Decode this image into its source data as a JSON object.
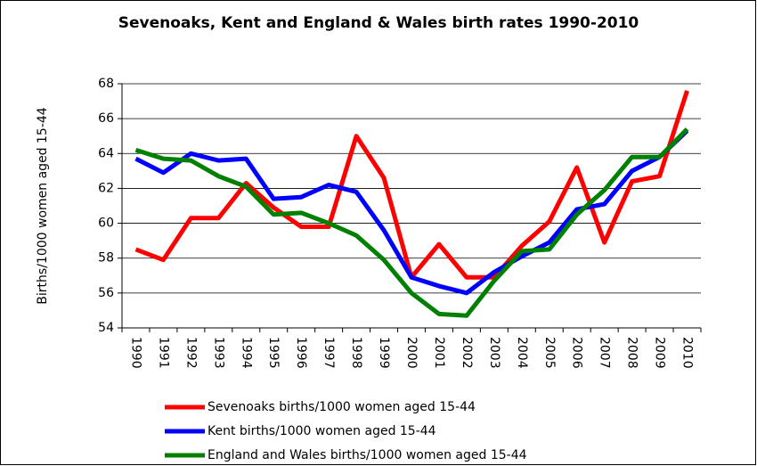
{
  "chart_data": {
    "type": "line",
    "title": "Sevenoaks, Kent and England & Wales birth rates 1990-2010",
    "y_label": "Births/1000 women aged 15-44",
    "categories": [
      "1990",
      "1991",
      "1992",
      "1993",
      "1994",
      "1995",
      "1996",
      "1997",
      "1998",
      "1999",
      "2000",
      "2001",
      "2002",
      "2003",
      "2004",
      "2005",
      "2006",
      "2007",
      "2008",
      "2009",
      "2010"
    ],
    "series": [
      {
        "name": "Sevenoaks births/1000 women aged 15-44",
        "color": "#ff0000",
        "values": [
          58.5,
          57.9,
          60.3,
          60.3,
          62.3,
          60.9,
          59.8,
          59.8,
          65.0,
          62.6,
          56.9,
          58.8,
          56.9,
          56.9,
          58.7,
          60.1,
          63.2,
          58.9,
          62.4,
          62.7,
          67.6
        ]
      },
      {
        "name": "Kent births/1000 women aged 15-44",
        "color": "#0000ff",
        "values": [
          63.7,
          62.9,
          64.0,
          63.6,
          63.7,
          61.4,
          61.5,
          62.2,
          61.8,
          59.6,
          56.9,
          56.4,
          56.0,
          57.2,
          58.1,
          58.9,
          60.8,
          61.1,
          63.0,
          63.8,
          65.3
        ]
      },
      {
        "name": "England and Wales births/1000 women aged 15-44",
        "color": "#008000",
        "values": [
          64.2,
          63.7,
          63.6,
          62.7,
          62.1,
          60.5,
          60.6,
          60.0,
          59.3,
          57.9,
          56.0,
          54.8,
          54.7,
          56.7,
          58.4,
          58.5,
          60.5,
          61.9,
          63.8,
          63.8,
          65.4
        ]
      }
    ],
    "ylim": [
      54,
      68
    ],
    "yticks": [
      54,
      56,
      58,
      60,
      62,
      64,
      66,
      68
    ],
    "grid": true,
    "legend": "bottom"
  }
}
